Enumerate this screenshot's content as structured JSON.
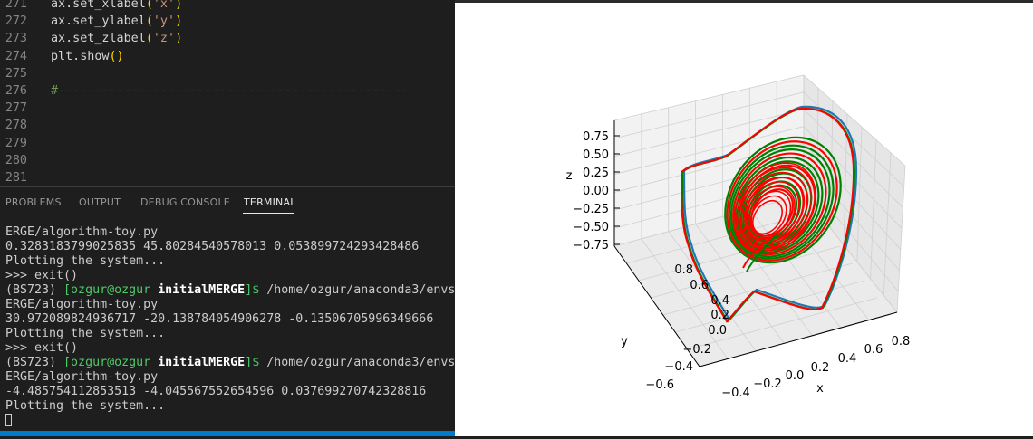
{
  "editor": {
    "lines": [
      {
        "no": "271",
        "parts": [
          {
            "t": "ax.set_xlabel",
            "c": ""
          },
          {
            "t": "(",
            "c": "tok-paren"
          },
          {
            "t": "'x'",
            "c": "tok-str"
          },
          {
            "t": ")",
            "c": "tok-paren"
          }
        ]
      },
      {
        "no": "272",
        "parts": [
          {
            "t": "ax.set_ylabel",
            "c": ""
          },
          {
            "t": "(",
            "c": "tok-paren"
          },
          {
            "t": "'y'",
            "c": "tok-str"
          },
          {
            "t": ")",
            "c": "tok-paren"
          }
        ]
      },
      {
        "no": "273",
        "parts": [
          {
            "t": "ax.set_zlabel",
            "c": ""
          },
          {
            "t": "(",
            "c": "tok-paren"
          },
          {
            "t": "'z'",
            "c": "tok-str"
          },
          {
            "t": ")",
            "c": "tok-paren"
          }
        ]
      },
      {
        "no": "274",
        "parts": [
          {
            "t": "plt.show",
            "c": ""
          },
          {
            "t": "()",
            "c": "tok-paren"
          }
        ]
      },
      {
        "no": "275",
        "parts": []
      },
      {
        "no": "276",
        "parts": [
          {
            "t": "#------------------------------------------------",
            "c": "tok-comment"
          }
        ]
      },
      {
        "no": "277",
        "parts": []
      },
      {
        "no": "278",
        "parts": []
      },
      {
        "no": "279",
        "parts": []
      },
      {
        "no": "280",
        "parts": []
      },
      {
        "no": "281",
        "parts": []
      }
    ]
  },
  "panel": {
    "tabs": [
      {
        "label": "PROBLEMS",
        "active": false
      },
      {
        "label": "OUTPUT",
        "active": false
      },
      {
        "label": "DEBUG CONSOLE",
        "active": false
      },
      {
        "label": "TERMINAL",
        "active": true
      }
    ]
  },
  "terminal": {
    "lines": [
      [
        {
          "t": "ERGE/algorithm-toy.py",
          "c": ""
        }
      ],
      [
        {
          "t": "0.3283183799025835 45.80284540578013 0.053899724293428486",
          "c": ""
        }
      ],
      [
        {
          "t": "Plotting the system...",
          "c": ""
        }
      ],
      [
        {
          "t": ">>> exit()",
          "c": ""
        }
      ],
      [
        {
          "t": "(BS723) ",
          "c": "t-env"
        },
        {
          "t": "[ozgur@ozgur ",
          "c": "t-user"
        },
        {
          "t": "initialMERGE",
          "c": "t-dir"
        },
        {
          "t": "]$",
          "c": "t-user"
        },
        {
          "t": " /home/ozgur/anaconda3/envs",
          "c": ""
        }
      ],
      [
        {
          "t": "ERGE/algorithm-toy.py",
          "c": ""
        }
      ],
      [
        {
          "t": "30.972089824936717 -20.138784054906278 -0.13506705996349666",
          "c": ""
        }
      ],
      [
        {
          "t": "Plotting the system...",
          "c": ""
        }
      ],
      [
        {
          "t": ">>> exit()",
          "c": ""
        }
      ],
      [
        {
          "t": "(BS723) ",
          "c": "t-env"
        },
        {
          "t": "[ozgur@ozgur ",
          "c": "t-user"
        },
        {
          "t": "initialMERGE",
          "c": "t-dir"
        },
        {
          "t": "]$",
          "c": "t-user"
        },
        {
          "t": " /home/ozgur/anaconda3/envs",
          "c": ""
        }
      ],
      [
        {
          "t": "ERGE/algorithm-toy.py",
          "c": ""
        }
      ],
      [
        {
          "t": "-4.485754112853513 -4.045567552654596 0.037699270742328816",
          "c": ""
        }
      ],
      [
        {
          "t": "Plotting the system...",
          "c": ""
        }
      ]
    ]
  },
  "plot": {
    "chart_data": {
      "type": "line3d",
      "xlabel": "x",
      "ylabel": "y",
      "zlabel": "z",
      "xticks": [
        "−0.4",
        "−0.2",
        "0.0",
        "0.2",
        "0.4",
        "0.6",
        "0.8"
      ],
      "yticks": [
        "−0.6",
        "−0.4",
        "−0.2",
        "0.0",
        "0.2",
        "0.4",
        "0.6",
        "0.8"
      ],
      "zticks": [
        "0.75",
        "0.50",
        "0.25",
        "0.00",
        "−0.25",
        "−0.50",
        "−0.75"
      ],
      "grid": true,
      "series_colors": [
        "#1f77b4",
        "#008000",
        "#ff0000"
      ]
    }
  }
}
